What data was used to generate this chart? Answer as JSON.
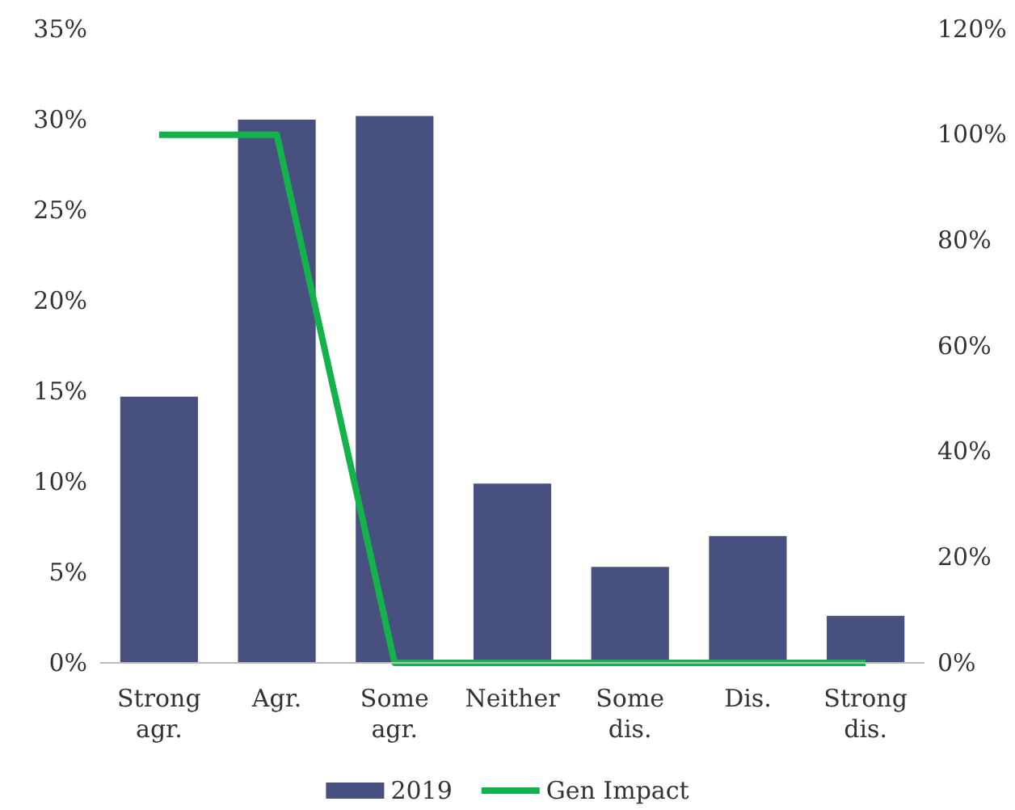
{
  "chart_data": {
    "type": "bar",
    "categories": [
      "Strong agr.",
      "Agr.",
      "Some agr.",
      "Neither",
      "Some dis.",
      "Dis.",
      "Strong dis."
    ],
    "series": [
      {
        "name": "2019",
        "color": "#48507f",
        "values": [
          14.7,
          30.0,
          30.2,
          9.9,
          5.3,
          7.0,
          2.6
        ]
      },
      {
        "name": "Gen Impact",
        "type": "line",
        "axis": "y2",
        "color": "#14b24a",
        "values": [
          100,
          100,
          0,
          0,
          0,
          0,
          0
        ]
      }
    ],
    "ylim": [
      0,
      35
    ],
    "yticks": [
      {
        "value": 0,
        "label": "0%"
      },
      {
        "value": 5,
        "label": "5%"
      },
      {
        "value": 10,
        "label": "10%"
      },
      {
        "value": 15,
        "label": "15%"
      },
      {
        "value": 20,
        "label": "20%"
      },
      {
        "value": 25,
        "label": "25%"
      },
      {
        "value": 30,
        "label": "30%"
      },
      {
        "value": 35,
        "label": "35%"
      }
    ],
    "y2lim": [
      0,
      120
    ],
    "y2ticks": [
      {
        "value": 0,
        "label": "0%"
      },
      {
        "value": 20,
        "label": "20%"
      },
      {
        "value": 40,
        "label": "40%"
      },
      {
        "value": 60,
        "label": "60%"
      },
      {
        "value": 80,
        "label": "80%"
      },
      {
        "value": 100,
        "label": "100%"
      },
      {
        "value": 120,
        "label": "120%"
      }
    ],
    "legend": "bottom",
    "marker": "none"
  }
}
